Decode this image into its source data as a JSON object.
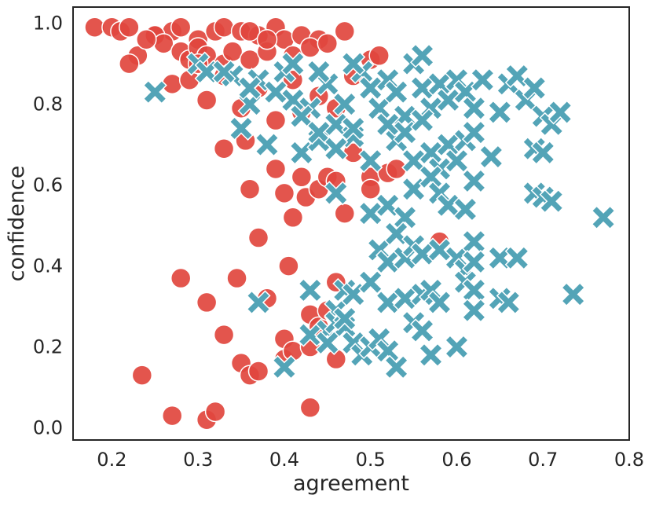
{
  "chart_data": {
    "type": "scatter",
    "xlabel": "agreement",
    "ylabel": "confidence",
    "xlim": [
      0.155,
      0.8
    ],
    "ylim": [
      -0.03,
      1.04
    ],
    "xticks": [
      "0.2",
      "0.3",
      "0.4",
      "0.5",
      "0.6",
      "0.7",
      "0.8"
    ],
    "yticks": [
      "0.0",
      "0.2",
      "0.4",
      "0.6",
      "0.8",
      "1.0"
    ],
    "grid": false,
    "colors": {
      "series_1": "#e1463e",
      "series_2": "#4a9fb3",
      "axis": "#262626"
    },
    "series": [
      {
        "marker": "circle",
        "points": [
          [
            0.18,
            0.99
          ],
          [
            0.2,
            0.99
          ],
          [
            0.21,
            0.98
          ],
          [
            0.22,
            0.99
          ],
          [
            0.25,
            0.97
          ],
          [
            0.27,
            0.98
          ],
          [
            0.28,
            0.99
          ],
          [
            0.3,
            0.96
          ],
          [
            0.32,
            0.98
          ],
          [
            0.33,
            0.99
          ],
          [
            0.35,
            0.98
          ],
          [
            0.37,
            0.97
          ],
          [
            0.39,
            0.99
          ],
          [
            0.4,
            0.96
          ],
          [
            0.42,
            0.97
          ],
          [
            0.44,
            0.96
          ],
          [
            0.47,
            0.98
          ],
          [
            0.23,
            0.92
          ],
          [
            0.25,
            0.97
          ],
          [
            0.26,
            0.95
          ],
          [
            0.28,
            0.93
          ],
          [
            0.29,
            0.91
          ],
          [
            0.3,
            0.94
          ],
          [
            0.31,
            0.92
          ],
          [
            0.33,
            0.9
          ],
          [
            0.34,
            0.93
          ],
          [
            0.36,
            0.91
          ],
          [
            0.38,
            0.93
          ],
          [
            0.41,
            0.92
          ],
          [
            0.43,
            0.94
          ],
          [
            0.45,
            0.95
          ],
          [
            0.22,
            0.9
          ],
          [
            0.24,
            0.96
          ],
          [
            0.36,
            0.98
          ],
          [
            0.38,
            0.96
          ],
          [
            0.27,
            0.85
          ],
          [
            0.29,
            0.86
          ],
          [
            0.3,
            0.9
          ],
          [
            0.31,
            0.81
          ],
          [
            0.33,
            0.87
          ],
          [
            0.35,
            0.79
          ],
          [
            0.37,
            0.84
          ],
          [
            0.39,
            0.76
          ],
          [
            0.41,
            0.86
          ],
          [
            0.42,
            0.78
          ],
          [
            0.44,
            0.82
          ],
          [
            0.46,
            0.79
          ],
          [
            0.48,
            0.87
          ],
          [
            0.5,
            0.91
          ],
          [
            0.51,
            0.92
          ],
          [
            0.33,
            0.69
          ],
          [
            0.355,
            0.71
          ],
          [
            0.36,
            0.59
          ],
          [
            0.37,
            0.47
          ],
          [
            0.39,
            0.64
          ],
          [
            0.4,
            0.58
          ],
          [
            0.41,
            0.52
          ],
          [
            0.42,
            0.62
          ],
          [
            0.425,
            0.57
          ],
          [
            0.44,
            0.59
          ],
          [
            0.45,
            0.62
          ],
          [
            0.46,
            0.61
          ],
          [
            0.47,
            0.53
          ],
          [
            0.48,
            0.68
          ],
          [
            0.5,
            0.62
          ],
          [
            0.5,
            0.59
          ],
          [
            0.52,
            0.63
          ],
          [
            0.53,
            0.64
          ],
          [
            0.58,
            0.46
          ],
          [
            0.28,
            0.37
          ],
          [
            0.31,
            0.31
          ],
          [
            0.33,
            0.23
          ],
          [
            0.345,
            0.37
          ],
          [
            0.35,
            0.16
          ],
          [
            0.36,
            0.13
          ],
          [
            0.37,
            0.14
          ],
          [
            0.38,
            0.32
          ],
          [
            0.4,
            0.22
          ],
          [
            0.4,
            0.17
          ],
          [
            0.405,
            0.4
          ],
          [
            0.41,
            0.19
          ],
          [
            0.43,
            0.28
          ],
          [
            0.43,
            0.2
          ],
          [
            0.44,
            0.25
          ],
          [
            0.45,
            0.29
          ],
          [
            0.46,
            0.36
          ],
          [
            0.46,
            0.17
          ],
          [
            0.235,
            0.13
          ],
          [
            0.27,
            0.03
          ],
          [
            0.31,
            0.02
          ],
          [
            0.32,
            0.04
          ],
          [
            0.43,
            0.05
          ]
        ]
      },
      {
        "marker": "x",
        "points": [
          [
            0.25,
            0.83
          ],
          [
            0.3,
            0.9
          ],
          [
            0.31,
            0.88
          ],
          [
            0.34,
            0.87
          ],
          [
            0.35,
            0.74
          ],
          [
            0.36,
            0.8
          ],
          [
            0.37,
            0.86
          ],
          [
            0.38,
            0.7
          ],
          [
            0.39,
            0.83
          ],
          [
            0.4,
            0.88
          ],
          [
            0.41,
            0.81
          ],
          [
            0.42,
            0.68
          ],
          [
            0.43,
            0.79
          ],
          [
            0.44,
            0.71
          ],
          [
            0.45,
            0.85
          ],
          [
            0.46,
            0.75
          ],
          [
            0.47,
            0.8
          ],
          [
            0.48,
            0.72
          ],
          [
            0.49,
            0.88
          ],
          [
            0.5,
            0.84
          ],
          [
            0.51,
            0.79
          ],
          [
            0.52,
            0.86
          ],
          [
            0.53,
            0.83
          ],
          [
            0.54,
            0.77
          ],
          [
            0.55,
            0.9
          ],
          [
            0.56,
            0.84
          ],
          [
            0.57,
            0.79
          ],
          [
            0.58,
            0.85
          ],
          [
            0.59,
            0.81
          ],
          [
            0.6,
            0.86
          ],
          [
            0.61,
            0.83
          ],
          [
            0.62,
            0.79
          ],
          [
            0.63,
            0.86
          ],
          [
            0.65,
            0.78
          ],
          [
            0.66,
            0.85
          ],
          [
            0.67,
            0.87
          ],
          [
            0.68,
            0.81
          ],
          [
            0.69,
            0.84
          ],
          [
            0.7,
            0.77
          ],
          [
            0.71,
            0.75
          ],
          [
            0.72,
            0.78
          ],
          [
            0.56,
            0.92
          ],
          [
            0.48,
            0.9
          ],
          [
            0.44,
            0.88
          ],
          [
            0.41,
            0.9
          ],
          [
            0.36,
            0.84
          ],
          [
            0.33,
            0.88
          ],
          [
            0.42,
            0.77
          ],
          [
            0.44,
            0.73
          ],
          [
            0.46,
            0.69
          ],
          [
            0.48,
            0.74
          ],
          [
            0.5,
            0.66
          ],
          [
            0.53,
            0.71
          ],
          [
            0.55,
            0.66
          ],
          [
            0.57,
            0.68
          ],
          [
            0.58,
            0.64
          ],
          [
            0.59,
            0.7
          ],
          [
            0.6,
            0.66
          ],
          [
            0.61,
            0.71
          ],
          [
            0.62,
            0.73
          ],
          [
            0.64,
            0.67
          ],
          [
            0.69,
            0.69
          ],
          [
            0.7,
            0.68
          ],
          [
            0.52,
            0.75
          ],
          [
            0.54,
            0.73
          ],
          [
            0.56,
            0.76
          ],
          [
            0.46,
            0.58
          ],
          [
            0.5,
            0.53
          ],
          [
            0.52,
            0.55
          ],
          [
            0.54,
            0.52
          ],
          [
            0.55,
            0.59
          ],
          [
            0.57,
            0.62
          ],
          [
            0.58,
            0.58
          ],
          [
            0.59,
            0.55
          ],
          [
            0.61,
            0.54
          ],
          [
            0.62,
            0.61
          ],
          [
            0.69,
            0.58
          ],
          [
            0.7,
            0.57
          ],
          [
            0.71,
            0.56
          ],
          [
            0.77,
            0.52
          ],
          [
            0.51,
            0.44
          ],
          [
            0.52,
            0.41
          ],
          [
            0.53,
            0.48
          ],
          [
            0.54,
            0.42
          ],
          [
            0.55,
            0.45
          ],
          [
            0.56,
            0.43
          ],
          [
            0.58,
            0.44
          ],
          [
            0.6,
            0.42
          ],
          [
            0.61,
            0.39
          ],
          [
            0.62,
            0.46
          ],
          [
            0.62,
            0.41
          ],
          [
            0.65,
            0.42
          ],
          [
            0.67,
            0.42
          ],
          [
            0.37,
            0.31
          ],
          [
            0.43,
            0.34
          ],
          [
            0.46,
            0.29
          ],
          [
            0.47,
            0.34
          ],
          [
            0.48,
            0.33
          ],
          [
            0.5,
            0.36
          ],
          [
            0.52,
            0.31
          ],
          [
            0.54,
            0.32
          ],
          [
            0.56,
            0.33
          ],
          [
            0.57,
            0.34
          ],
          [
            0.58,
            0.31
          ],
          [
            0.61,
            0.36
          ],
          [
            0.62,
            0.34
          ],
          [
            0.65,
            0.32
          ],
          [
            0.66,
            0.31
          ],
          [
            0.735,
            0.33
          ],
          [
            0.4,
            0.15
          ],
          [
            0.43,
            0.23
          ],
          [
            0.45,
            0.24
          ],
          [
            0.46,
            0.26
          ],
          [
            0.47,
            0.25
          ],
          [
            0.48,
            0.21
          ],
          [
            0.49,
            0.18
          ],
          [
            0.5,
            0.2
          ],
          [
            0.51,
            0.22
          ],
          [
            0.52,
            0.19
          ],
          [
            0.53,
            0.15
          ],
          [
            0.55,
            0.26
          ],
          [
            0.56,
            0.24
          ],
          [
            0.57,
            0.18
          ],
          [
            0.6,
            0.2
          ],
          [
            0.62,
            0.29
          ],
          [
            0.47,
            0.27
          ],
          [
            0.45,
            0.21
          ]
        ]
      }
    ]
  }
}
